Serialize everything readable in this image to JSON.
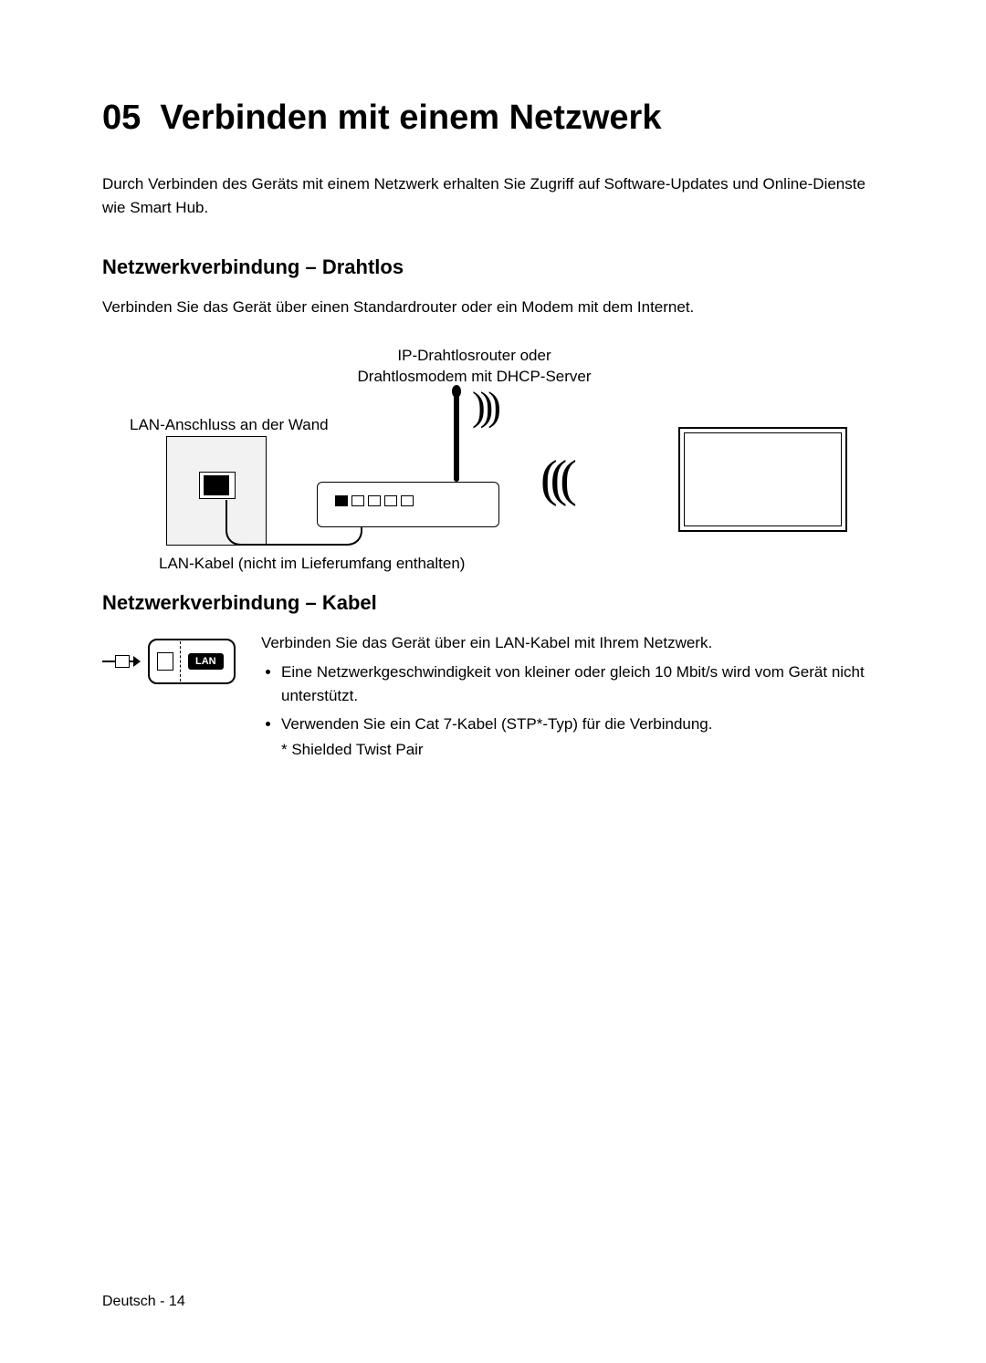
{
  "chapter": "05",
  "chapter_title": "Verbinden mit einem Netzwerk",
  "intro": "Durch Verbinden des Geräts mit einem Netzwerk erhalten Sie Zugriff auf Software-Updates und Online-Dienste wie Smart Hub.",
  "wireless": {
    "title": "Netzwerkverbindung – Drahtlos",
    "text": "Verbinden Sie das Gerät über einen Standardrouter oder ein Modem mit dem Internet.",
    "router_label_line1": "IP-Drahtlosrouter oder",
    "router_label_line2": "Drahtlosmodem mit DHCP-Server",
    "wall_label": "LAN-Anschluss an der Wand",
    "cable_note": "LAN-Kabel (nicht im Lieferumfang enthalten)"
  },
  "wired": {
    "title": "Netzwerkverbindung – Kabel",
    "intro": "Verbinden Sie das Gerät über ein LAN-Kabel mit Ihrem Netzwerk.",
    "bullet1": "Eine Netzwerkgeschwindigkeit von kleiner oder gleich 10 Mbit/s wird vom Gerät nicht unterstützt.",
    "bullet2": "Verwenden Sie ein Cat 7-Kabel (STP*-Typ) für die Verbindung.",
    "stp_note": "* Shielded Twist Pair",
    "lan_badge": "LAN"
  },
  "footer": "Deutsch - 14",
  "diagram": {
    "waves_out": ")))",
    "waves_in": "((("
  }
}
